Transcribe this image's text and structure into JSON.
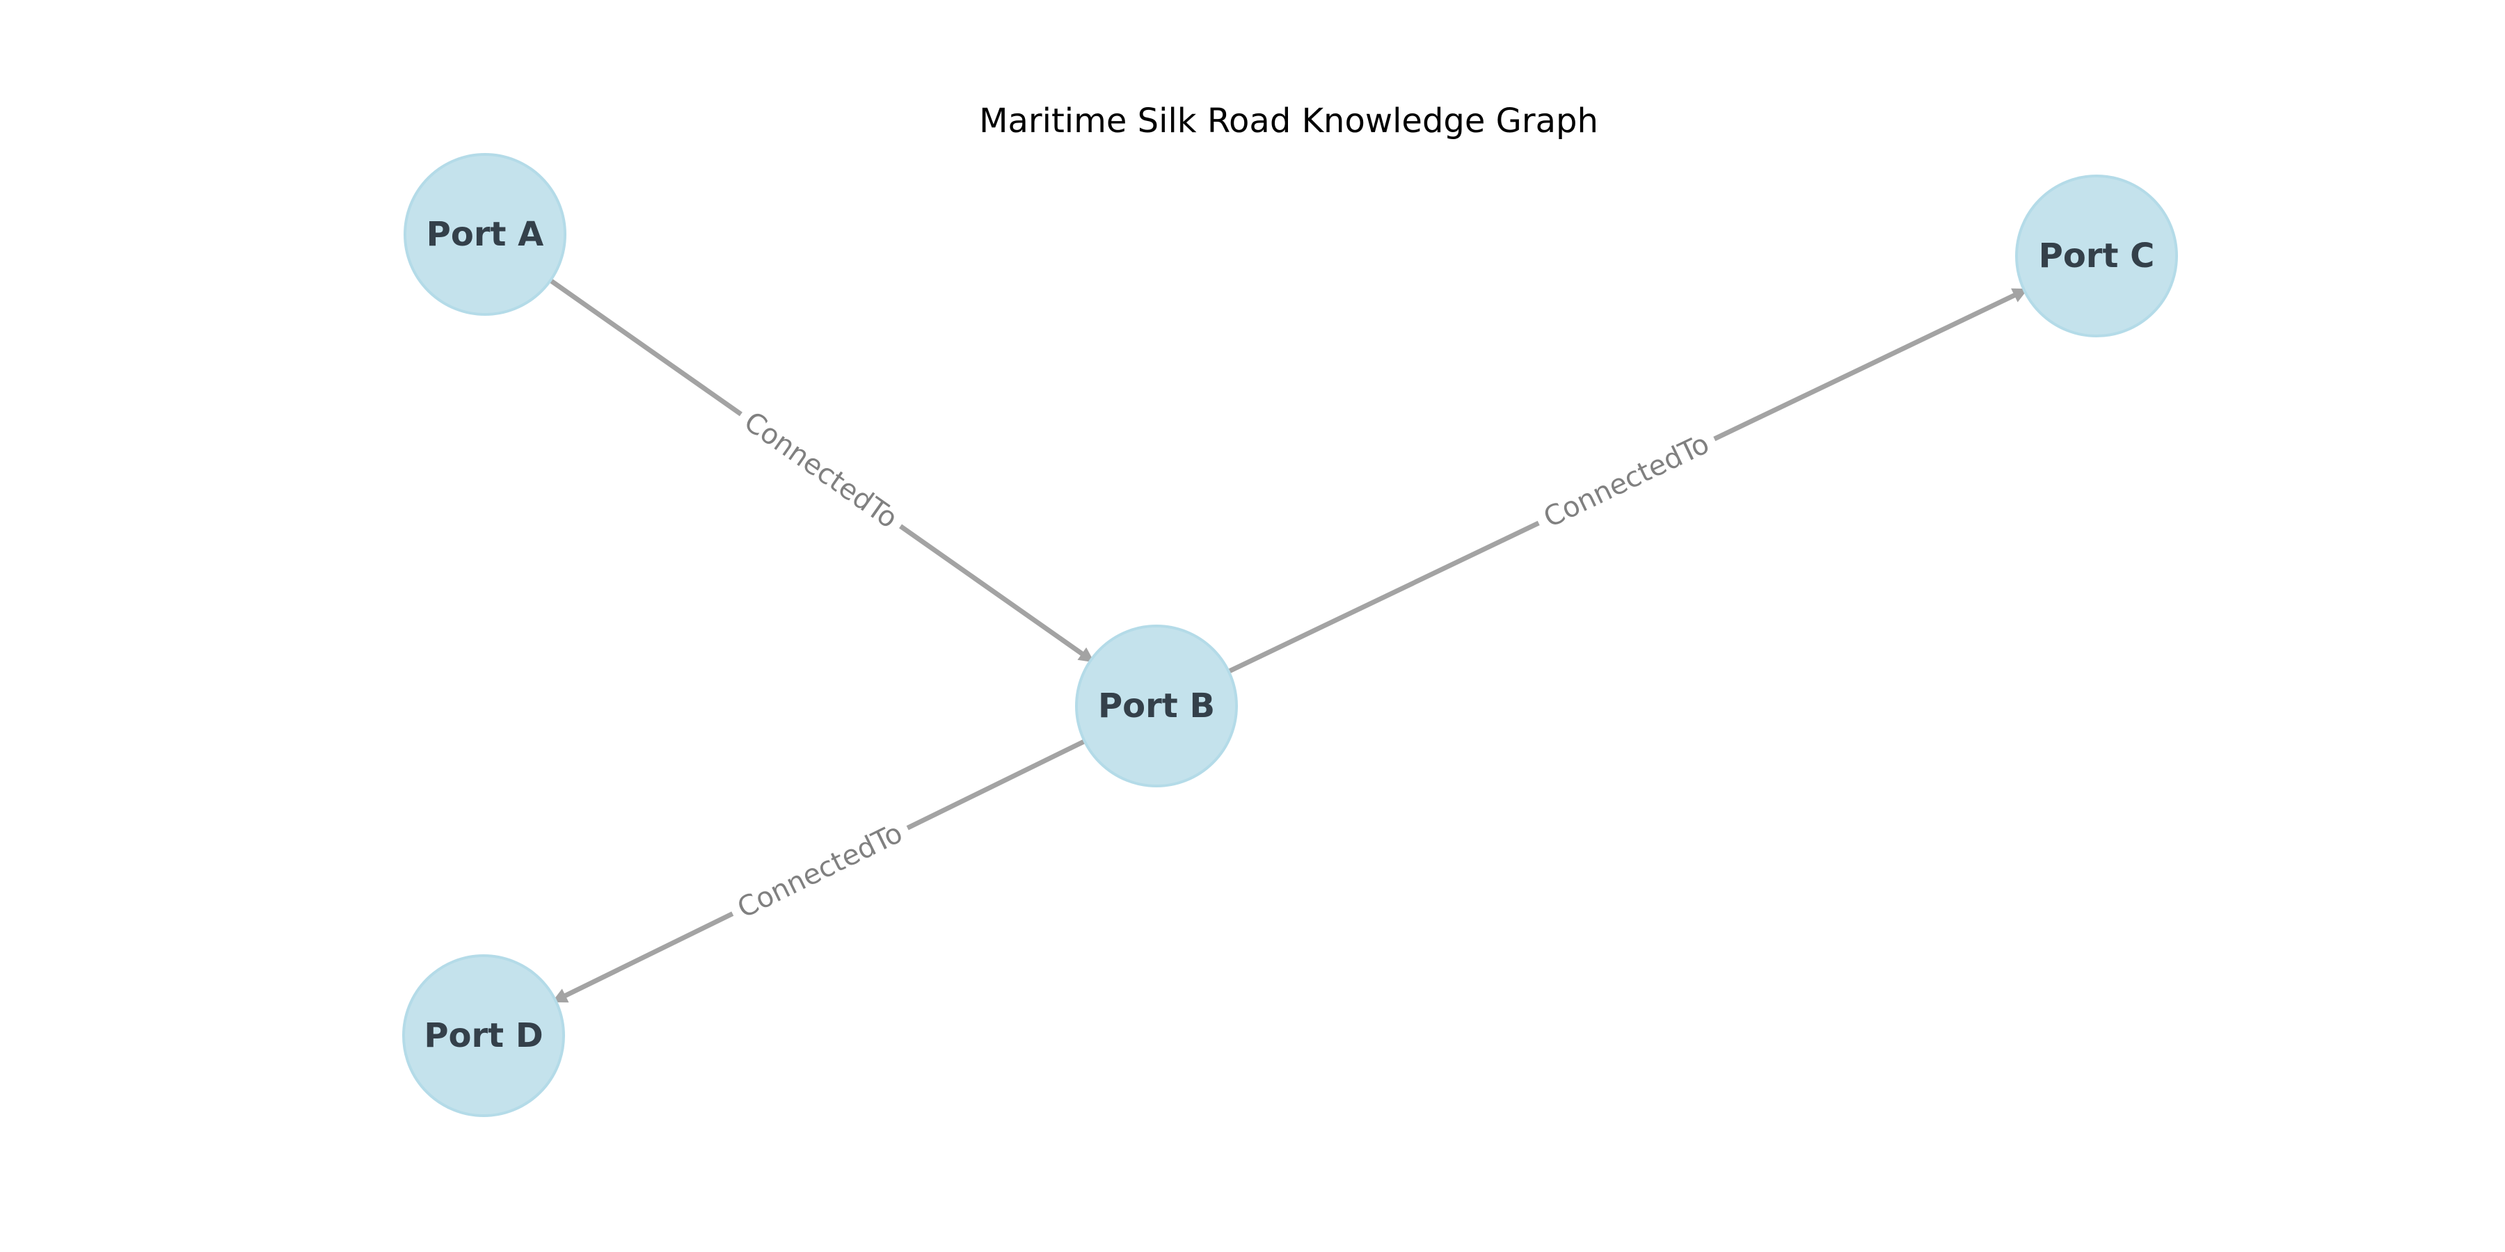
{
  "title": "Maritime Silk Road Knowledge Graph",
  "colors": {
    "node_fill": "#c4e2ec",
    "node_stroke": "#b4dbe8",
    "node_text": "#34404a",
    "edge": "#a3a3a3",
    "edge_label": "#808080"
  },
  "nodes": [
    {
      "id": "A",
      "label": "Port A"
    },
    {
      "id": "B",
      "label": "Port B"
    },
    {
      "id": "C",
      "label": "Port C"
    },
    {
      "id": "D",
      "label": "Port D"
    }
  ],
  "edges": [
    {
      "from": "A",
      "to": "B",
      "label": "ConnectedTo"
    },
    {
      "from": "B",
      "to": "C",
      "label": "ConnectedTo"
    },
    {
      "from": "B",
      "to": "D",
      "label": "ConnectedTo"
    }
  ]
}
